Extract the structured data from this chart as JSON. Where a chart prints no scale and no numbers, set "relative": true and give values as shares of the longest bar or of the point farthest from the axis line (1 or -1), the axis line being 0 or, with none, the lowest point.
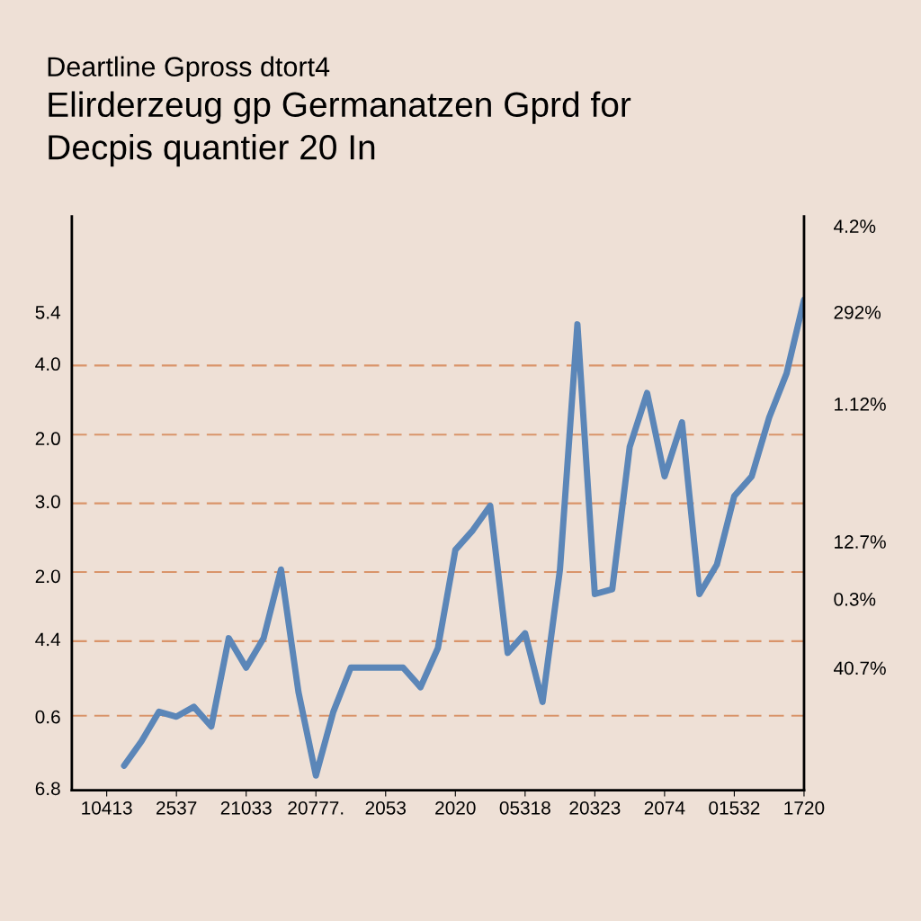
{
  "chart_data": {
    "type": "line",
    "title": "Deartline Gpross dtort4",
    "subtitle": "Elirderzeug gp Germanatzen Gprd for\nDecpis quantier 20 In",
    "categories": [
      "10413",
      null,
      null,
      null,
      "2537",
      null,
      null,
      null,
      "21033",
      null,
      null,
      null,
      "20777.",
      null,
      null,
      null,
      "2053",
      null,
      null,
      null,
      "2020",
      null,
      null,
      null,
      "05318",
      null,
      null,
      null,
      "20323",
      null,
      null,
      null,
      "2074",
      null,
      null,
      null,
      "01532",
      null,
      null,
      null,
      "1720"
    ],
    "relative": true,
    "series": [
      {
        "color": "#5b86b8",
        "values": [
          null,
          0.05,
          0.1,
          0.16,
          0.15,
          0.17,
          0.13,
          0.31,
          0.25,
          0.31,
          0.45,
          0.2,
          0.03,
          0.16,
          0.25,
          0.25,
          0.25,
          0.25,
          0.21,
          0.29,
          0.49,
          0.53,
          0.58,
          0.28,
          0.32,
          0.18,
          0.45,
          0.95,
          0.4,
          0.41,
          0.7,
          0.81,
          0.64,
          0.75,
          0.4,
          0.46,
          0.6,
          0.64,
          0.76,
          0.85,
          1
        ]
      }
    ],
    "annotations": [
      "5.4",
      "4.0",
      "2.0",
      "3.0",
      "2.0",
      "4.4",
      "0.6",
      "6.8",
      "4.2%",
      "292%",
      "1.12%",
      "12.7%",
      "0.3%",
      "40.7%"
    ],
    "ref_lines": [
      {
        "axis": "y",
        "value": 0.152,
        "color": "#d9946a",
        "line_style": "dashed"
      },
      {
        "axis": "y",
        "value": 0.304,
        "color": "#d9946a",
        "line_style": "dashed"
      },
      {
        "axis": "y",
        "value": 0.445,
        "color": "#d9946a",
        "line_style": "dashed"
      },
      {
        "axis": "y",
        "value": 0.585,
        "color": "#d9946a",
        "line_style": "dashed"
      },
      {
        "axis": "y",
        "value": 0.725,
        "color": "#d9946a",
        "line_style": "dashed"
      },
      {
        "axis": "y",
        "value": 0.866,
        "color": "#d9946a",
        "line_style": "dashed"
      }
    ],
    "line_style": "solid",
    "marker": "none"
  }
}
